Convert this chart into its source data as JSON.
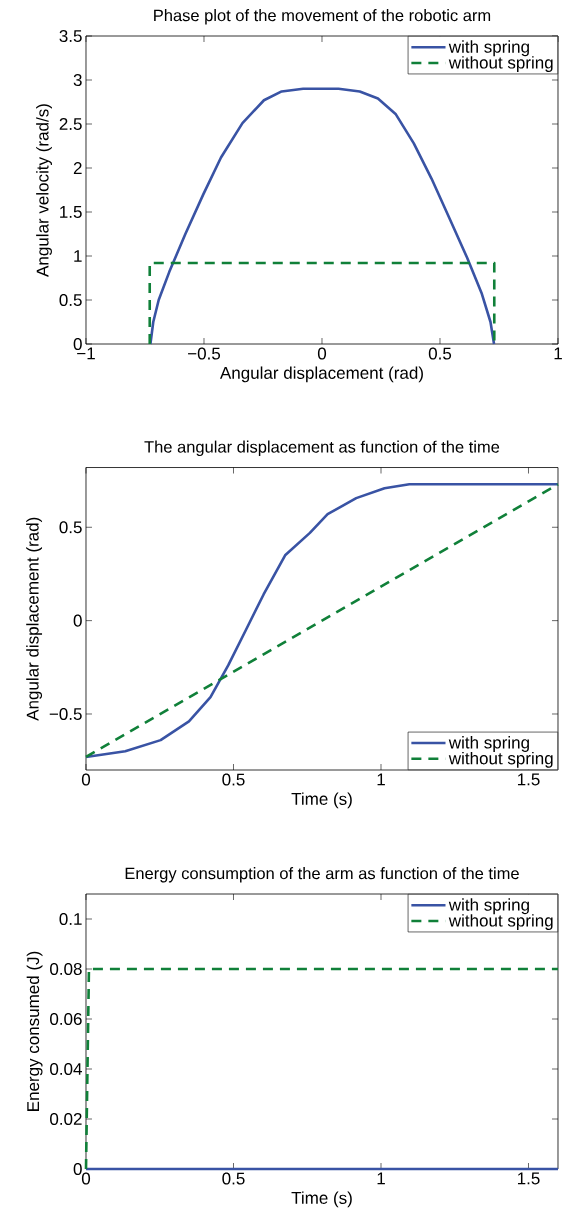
{
  "chart_data": [
    {
      "type": "line",
      "title": "Phase plot of the movement of the robotic arm",
      "xlabel": "Angular displacement (rad)",
      "ylabel": "Angular velocity (rad/s)",
      "xlim": [
        -1,
        1
      ],
      "ylim": [
        0,
        3.5
      ],
      "xticks": [
        {
          "value": -1,
          "label": "−1"
        },
        {
          "value": -0.5,
          "label": "−0.5"
        },
        0,
        0.5,
        1
      ],
      "yticks": [
        0,
        0.5,
        1,
        1.5,
        2,
        2.5,
        3,
        3.5
      ],
      "legend": "top right",
      "series": [
        {
          "name": "with spring",
          "color": "#3953a4",
          "line_style": "solid",
          "x": [
            -0.727,
            -0.715,
            -0.692,
            -0.647,
            -0.579,
            -0.503,
            -0.428,
            -0.337,
            -0.246,
            -0.171,
            -0.08,
            0.07,
            0.16,
            0.237,
            0.313,
            0.389,
            0.464,
            0.54,
            0.615,
            0.676,
            0.714,
            0.729
          ],
          "values": [
            0,
            0.25,
            0.5,
            0.82,
            1.25,
            1.7,
            2.12,
            2.51,
            2.77,
            2.87,
            2.9,
            2.9,
            2.87,
            2.79,
            2.61,
            2.28,
            1.88,
            1.43,
            0.98,
            0.58,
            0.25,
            0
          ]
        },
        {
          "name": "without spring",
          "color": "#108039",
          "line_style": "dashed",
          "x": [
            -0.73,
            -0.73,
            0.73,
            0.73
          ],
          "values": [
            0,
            0.92,
            0.92,
            0
          ]
        }
      ]
    },
    {
      "type": "line",
      "title": "The angular displacement as function of the time",
      "xlabel": "Time (s)",
      "ylabel": "Angular displacement (rad)",
      "xlim": [
        0,
        1.6
      ],
      "ylim": [
        -0.8,
        0.82
      ],
      "xticks": [
        0,
        0.5,
        1,
        1.5
      ],
      "yticks": [
        {
          "value": -0.5,
          "label": "−0.5"
        },
        0,
        0.5
      ],
      "legend": "bottom right",
      "series": [
        {
          "name": "with spring",
          "color": "#3953a4",
          "line_style": "solid",
          "x": [
            0,
            0.133,
            0.253,
            0.349,
            0.422,
            0.482,
            0.542,
            0.602,
            0.675,
            0.759,
            0.819,
            0.916,
            1.012,
            1.096,
            1.6
          ],
          "values": [
            -0.73,
            -0.7,
            -0.64,
            -0.54,
            -0.41,
            -0.24,
            -0.05,
            0.14,
            0.35,
            0.47,
            0.57,
            0.656,
            0.709,
            0.73,
            0.73
          ]
        },
        {
          "name": "without spring",
          "color": "#108039",
          "line_style": "dashed",
          "x": [
            0,
            1.6
          ],
          "values": [
            -0.73,
            0.73
          ]
        }
      ]
    },
    {
      "type": "line",
      "title": "Energy consumption of the arm as function of the time",
      "xlabel": "Time (s)",
      "ylabel": "Energy consumed (J)",
      "xlim": [
        0,
        1.6
      ],
      "ylim": [
        0,
        0.11
      ],
      "xticks": [
        0,
        0.5,
        1,
        1.5
      ],
      "yticks": [
        0,
        0.02,
        0.04,
        0.06,
        0.08,
        0.1
      ],
      "legend": "top right",
      "series": [
        {
          "name": "with spring",
          "color": "#3953a4",
          "line_style": "solid",
          "x": [
            0,
            1.6
          ],
          "values": [
            0,
            0
          ]
        },
        {
          "name": "without spring",
          "color": "#108039",
          "line_style": "dashed",
          "x": [
            0,
            0.005,
            0.01,
            1.6
          ],
          "values": [
            0,
            0.04,
            0.08,
            0.08
          ]
        }
      ]
    }
  ]
}
